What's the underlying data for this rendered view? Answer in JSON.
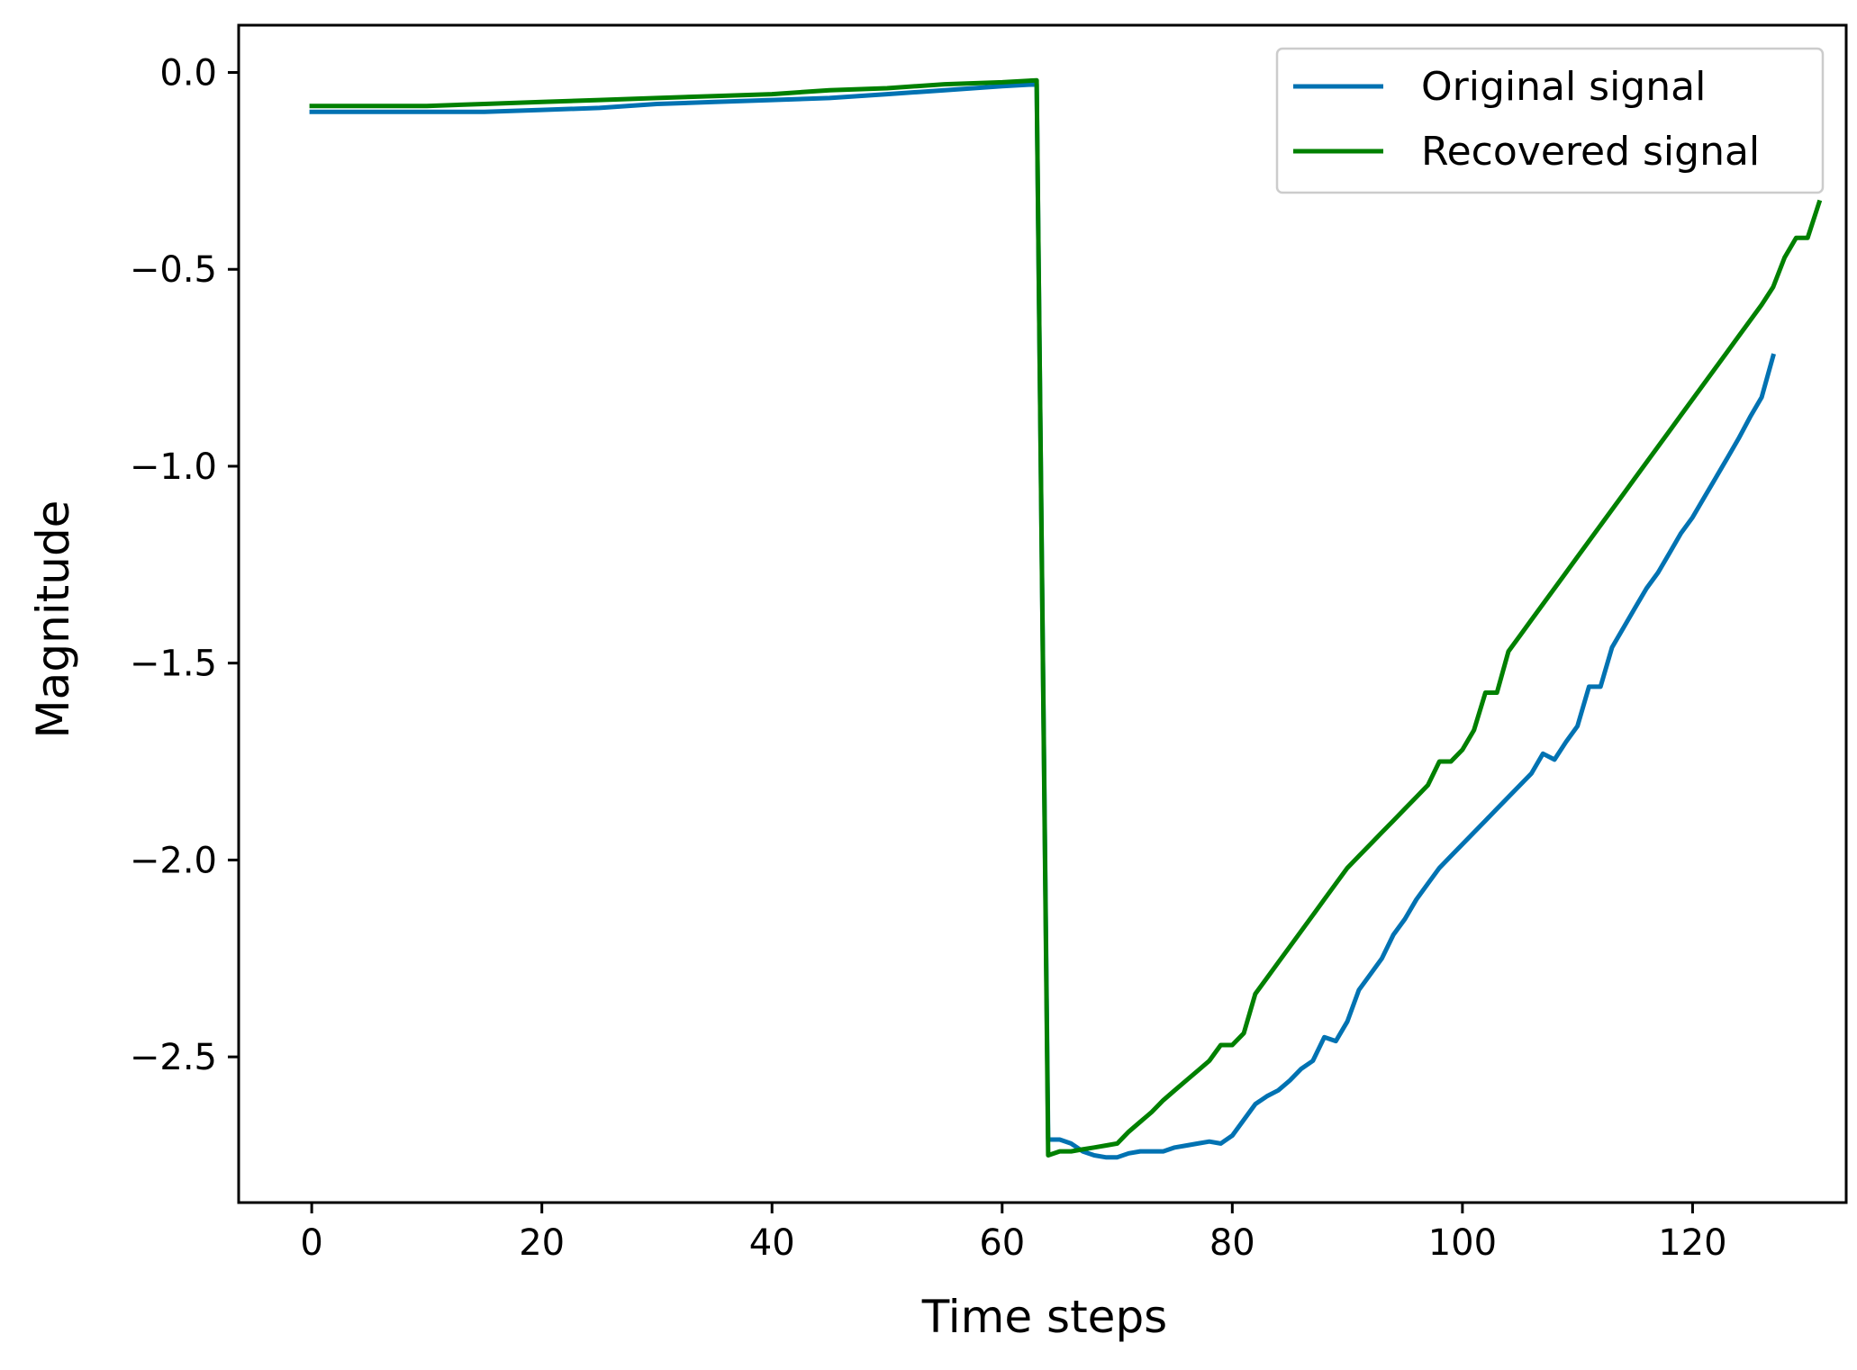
{
  "chart_data": {
    "type": "line",
    "title": "",
    "xlabel": "Time steps",
    "ylabel": "Magnitude",
    "xlim": [
      -6.35,
      133.35
    ],
    "ylim": [
      -2.87,
      0.12
    ],
    "xticks": [
      0,
      20,
      40,
      60,
      80,
      100,
      120
    ],
    "yticks": [
      0.0,
      -0.5,
      -1.0,
      -1.5,
      -2.0,
      -2.5
    ],
    "xtick_labels": [
      "0",
      "20",
      "40",
      "60",
      "80",
      "100",
      "120"
    ],
    "ytick_labels": [
      "0.0",
      "−0.5",
      "−1.0",
      "−1.5",
      "−2.0",
      "−2.5"
    ],
    "grid": false,
    "legend": {
      "placement": "top-right"
    },
    "series": [
      {
        "name": "Original signal",
        "color": "#0072b2",
        "points": [
          [
            0,
            -0.1
          ],
          [
            5,
            -0.1
          ],
          [
            10,
            -0.1
          ],
          [
            15,
            -0.1
          ],
          [
            20,
            -0.095
          ],
          [
            25,
            -0.09
          ],
          [
            30,
            -0.08
          ],
          [
            35,
            -0.075
          ],
          [
            40,
            -0.07
          ],
          [
            45,
            -0.065
          ],
          [
            50,
            -0.055
          ],
          [
            55,
            -0.045
          ],
          [
            60,
            -0.035
          ],
          [
            63,
            -0.03
          ],
          [
            64,
            -2.71
          ],
          [
            65,
            -2.71
          ],
          [
            66,
            -2.72
          ],
          [
            67,
            -2.74
          ],
          [
            68,
            -2.75
          ],
          [
            69,
            -2.755
          ],
          [
            70,
            -2.755
          ],
          [
            71,
            -2.745
          ],
          [
            72,
            -2.74
          ],
          [
            73,
            -2.74
          ],
          [
            74,
            -2.74
          ],
          [
            75,
            -2.73
          ],
          [
            76,
            -2.725
          ],
          [
            77,
            -2.72
          ],
          [
            78,
            -2.715
          ],
          [
            79,
            -2.72
          ],
          [
            80,
            -2.7
          ],
          [
            81,
            -2.66
          ],
          [
            82,
            -2.62
          ],
          [
            83,
            -2.6
          ],
          [
            84,
            -2.585
          ],
          [
            85,
            -2.56
          ],
          [
            86,
            -2.53
          ],
          [
            87,
            -2.51
          ],
          [
            88,
            -2.45
          ],
          [
            89,
            -2.46
          ],
          [
            90,
            -2.41
          ],
          [
            91,
            -2.33
          ],
          [
            92,
            -2.29
          ],
          [
            93,
            -2.25
          ],
          [
            94,
            -2.19
          ],
          [
            95,
            -2.15
          ],
          [
            96,
            -2.1
          ],
          [
            97,
            -2.06
          ],
          [
            98,
            -2.02
          ],
          [
            99,
            -1.99
          ],
          [
            100,
            -1.96
          ],
          [
            101,
            -1.93
          ],
          [
            102,
            -1.9
          ],
          [
            103,
            -1.87
          ],
          [
            104,
            -1.84
          ],
          [
            105,
            -1.81
          ],
          [
            106,
            -1.78
          ],
          [
            107,
            -1.73
          ],
          [
            108,
            -1.745
          ],
          [
            109,
            -1.7
          ],
          [
            110,
            -1.66
          ],
          [
            111,
            -1.56
          ],
          [
            112,
            -1.56
          ],
          [
            113,
            -1.46
          ],
          [
            114,
            -1.41
          ],
          [
            115,
            -1.36
          ],
          [
            116,
            -1.31
          ],
          [
            117,
            -1.27
          ],
          [
            118,
            -1.22
          ],
          [
            119,
            -1.17
          ],
          [
            120,
            -1.13
          ],
          [
            121,
            -1.08
          ],
          [
            122,
            -1.03
          ],
          [
            123,
            -0.98
          ],
          [
            124,
            -0.93
          ],
          [
            125,
            -0.875
          ],
          [
            126,
            -0.825
          ],
          [
            127,
            -0.72
          ]
        ]
      },
      {
        "name": "Recovered signal",
        "color": "#008000",
        "points": [
          [
            0,
            -0.085
          ],
          [
            5,
            -0.085
          ],
          [
            10,
            -0.085
          ],
          [
            15,
            -0.08
          ],
          [
            20,
            -0.075
          ],
          [
            25,
            -0.07
          ],
          [
            30,
            -0.065
          ],
          [
            35,
            -0.06
          ],
          [
            40,
            -0.055
          ],
          [
            45,
            -0.045
          ],
          [
            50,
            -0.04
          ],
          [
            55,
            -0.03
          ],
          [
            60,
            -0.025
          ],
          [
            63,
            -0.02
          ],
          [
            64,
            -2.75
          ],
          [
            65,
            -2.74
          ],
          [
            66,
            -2.74
          ],
          [
            67,
            -2.735
          ],
          [
            68,
            -2.73
          ],
          [
            69,
            -2.725
          ],
          [
            70,
            -2.72
          ],
          [
            71,
            -2.69
          ],
          [
            72,
            -2.665
          ],
          [
            73,
            -2.64
          ],
          [
            74,
            -2.61
          ],
          [
            75,
            -2.585
          ],
          [
            76,
            -2.56
          ],
          [
            77,
            -2.535
          ],
          [
            78,
            -2.51
          ],
          [
            79,
            -2.47
          ],
          [
            80,
            -2.47
          ],
          [
            81,
            -2.44
          ],
          [
            82,
            -2.34
          ],
          [
            83,
            -2.3
          ],
          [
            84,
            -2.26
          ],
          [
            85,
            -2.22
          ],
          [
            86,
            -2.18
          ],
          [
            87,
            -2.14
          ],
          [
            88,
            -2.1
          ],
          [
            89,
            -2.06
          ],
          [
            90,
            -2.02
          ],
          [
            91,
            -1.99
          ],
          [
            92,
            -1.96
          ],
          [
            93,
            -1.93
          ],
          [
            94,
            -1.9
          ],
          [
            95,
            -1.87
          ],
          [
            96,
            -1.84
          ],
          [
            97,
            -1.81
          ],
          [
            98,
            -1.75
          ],
          [
            99,
            -1.75
          ],
          [
            100,
            -1.72
          ],
          [
            101,
            -1.67
          ],
          [
            102,
            -1.575
          ],
          [
            103,
            -1.575
          ],
          [
            104,
            -1.47
          ],
          [
            105,
            -1.43
          ],
          [
            106,
            -1.39
          ],
          [
            107,
            -1.35
          ],
          [
            108,
            -1.31
          ],
          [
            109,
            -1.27
          ],
          [
            110,
            -1.23
          ],
          [
            111,
            -1.19
          ],
          [
            112,
            -1.15
          ],
          [
            113,
            -1.11
          ],
          [
            114,
            -1.07
          ],
          [
            115,
            -1.03
          ],
          [
            116,
            -0.99
          ],
          [
            117,
            -0.95
          ],
          [
            118,
            -0.91
          ],
          [
            119,
            -0.87
          ],
          [
            120,
            -0.83
          ],
          [
            121,
            -0.79
          ],
          [
            122,
            -0.75
          ],
          [
            123,
            -0.71
          ],
          [
            124,
            -0.67
          ],
          [
            125,
            -0.63
          ],
          [
            126,
            -0.59
          ],
          [
            127,
            -0.545
          ],
          [
            128,
            -0.47
          ],
          [
            129,
            -0.42
          ],
          [
            130,
            -0.42
          ],
          [
            131,
            -0.33
          ]
        ]
      }
    ]
  }
}
